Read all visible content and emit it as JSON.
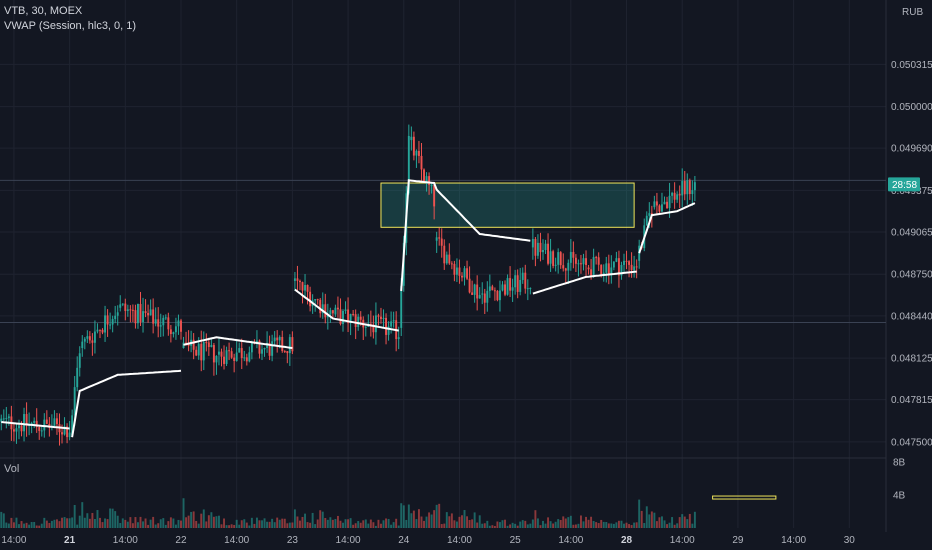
{
  "legend": {
    "symbol_line": "VTB, 30, MOEX",
    "indicator_line": "VWAP (Session, hlc3, 0, 1)"
  },
  "volume_label": "Vol",
  "currency_label": "RUB",
  "chart_data": {
    "type": "candlestick",
    "symbol": "VTB",
    "interval": "30",
    "exchange": "MOEX",
    "currency": "RUB",
    "ylim": [
      0.04738,
      0.05072
    ],
    "y_ticks": [
      "0.050315",
      "0.050000",
      "0.049690",
      "0.049375",
      "0.049065",
      "0.048750",
      "0.048440",
      "0.048125",
      "0.047815",
      "0.047500"
    ],
    "last_price_countdown": "28:58",
    "last_price": 0.04942,
    "volume_ticks": [
      "8B",
      "4B"
    ],
    "volume_max_billions": 8.5,
    "x_tick_labels": [
      {
        "label": "14:00",
        "bold": false
      },
      {
        "label": "21",
        "bold": true
      },
      {
        "label": "14:00",
        "bold": false
      },
      {
        "label": "22",
        "bold": false
      },
      {
        "label": "14:00",
        "bold": false
      },
      {
        "label": "23",
        "bold": false
      },
      {
        "label": "14:00",
        "bold": false
      },
      {
        "label": "24",
        "bold": false
      },
      {
        "label": "14:00",
        "bold": false
      },
      {
        "label": "25",
        "bold": false
      },
      {
        "label": "14:00",
        "bold": false
      },
      {
        "label": "28",
        "bold": true
      },
      {
        "label": "14:00",
        "bold": false
      },
      {
        "label": "29",
        "bold": false
      },
      {
        "label": "14:00",
        "bold": false
      },
      {
        "label": "30",
        "bold": false
      }
    ],
    "colors": {
      "up": "#26a69a",
      "down": "#ef5350",
      "vwap": "#ffffff",
      "zone_fill": "#26a69a",
      "zone_border": "#f0e65a",
      "background": "#131722",
      "grid": "#1f2330"
    },
    "horizontal_lines": [
      0.04945,
      0.04839
    ],
    "zone": {
      "start_bar": 150,
      "end_bar": 250,
      "top": 0.04943,
      "bottom": 0.0491
    },
    "volume_marker": {
      "start_bar": 281,
      "end_bar": 306,
      "value_billions": 3.7
    },
    "segments": [
      {
        "start": 0,
        "open": 0.04765,
        "end": 0.0476,
        "vol": 1.4,
        "vwap_start": 0.04765,
        "vwap_end": 0.0476
      },
      {
        "start": 28,
        "open": 0.04755,
        "end": 0.0482,
        "vol": 2.0,
        "vwap_start": 0.04742,
        "vwap_end": 0.04788
      },
      {
        "start": 32,
        "open": 0.0482,
        "end": 0.0485,
        "vol": 2.4,
        "vwap_start": 0.04788,
        "vwap_end": 0.048
      },
      {
        "start": 47,
        "open": 0.0485,
        "end": 0.04835,
        "vol": 1.4,
        "vwap_start": 0.048,
        "vwap_end": 0.04803
      },
      {
        "start": 72,
        "open": 0.0482,
        "end": 0.04815,
        "vol": 2.6,
        "vwap_start": 0.04822,
        "vwap_end": 0.04828
      },
      {
        "start": 86,
        "open": 0.04815,
        "end": 0.04822,
        "vol": 1.3,
        "vwap_start": 0.04828,
        "vwap_end": 0.0482
      },
      {
        "start": 116,
        "open": 0.0487,
        "end": 0.04845,
        "vol": 2.2,
        "vwap_start": 0.04865,
        "vwap_end": 0.04842
      },
      {
        "start": 132,
        "open": 0.04845,
        "end": 0.04832,
        "vol": 1.2,
        "vwap_start": 0.04842,
        "vwap_end": 0.04833
      },
      {
        "start": 158,
        "open": 0.04835,
        "end": 0.04975,
        "vol": 4.0,
        "vwap_start": 0.04835,
        "vwap_end": 0.04945
      },
      {
        "start": 162,
        "open": 0.04975,
        "end": 0.0493,
        "vol": 2.8,
        "vwap_start": 0.04945,
        "vwap_end": 0.04943
      },
      {
        "start": 172,
        "open": 0.049,
        "end": 0.0486,
        "vol": 2.3,
        "vwap_start": 0.0494,
        "vwap_end": 0.04905
      },
      {
        "start": 190,
        "open": 0.0486,
        "end": 0.0487,
        "vol": 1.2,
        "vwap_start": 0.04905,
        "vwap_end": 0.049
      },
      {
        "start": 210,
        "open": 0.04895,
        "end": 0.0488,
        "vol": 1.6,
        "vwap_start": 0.0486,
        "vwap_end": 0.04873
      },
      {
        "start": 232,
        "open": 0.0488,
        "end": 0.04883,
        "vol": 1.0,
        "vwap_start": 0.04873,
        "vwap_end": 0.04877
      },
      {
        "start": 252,
        "open": 0.04885,
        "end": 0.04925,
        "vol": 3.0,
        "vwap_start": 0.04885,
        "vwap_end": 0.04919
      },
      {
        "start": 258,
        "open": 0.04925,
        "end": 0.04935,
        "vol": 1.5,
        "vwap_start": 0.04919,
        "vwap_end": 0.04922
      },
      {
        "start": 268,
        "open": 0.04935,
        "end": 0.04942,
        "vol": 2.2,
        "vwap_start": 0.04922,
        "vwap_end": 0.04928
      },
      {
        "start": 275,
        "open": 0.04942,
        "end": 0.04942,
        "vol": 0,
        "vwap_start": 0.04928,
        "vwap_end": 0.04928
      }
    ],
    "total_bars": 276,
    "visible_bars": 350,
    "vwap_breaks": [
      28,
      72,
      116,
      158,
      210,
      252
    ]
  }
}
